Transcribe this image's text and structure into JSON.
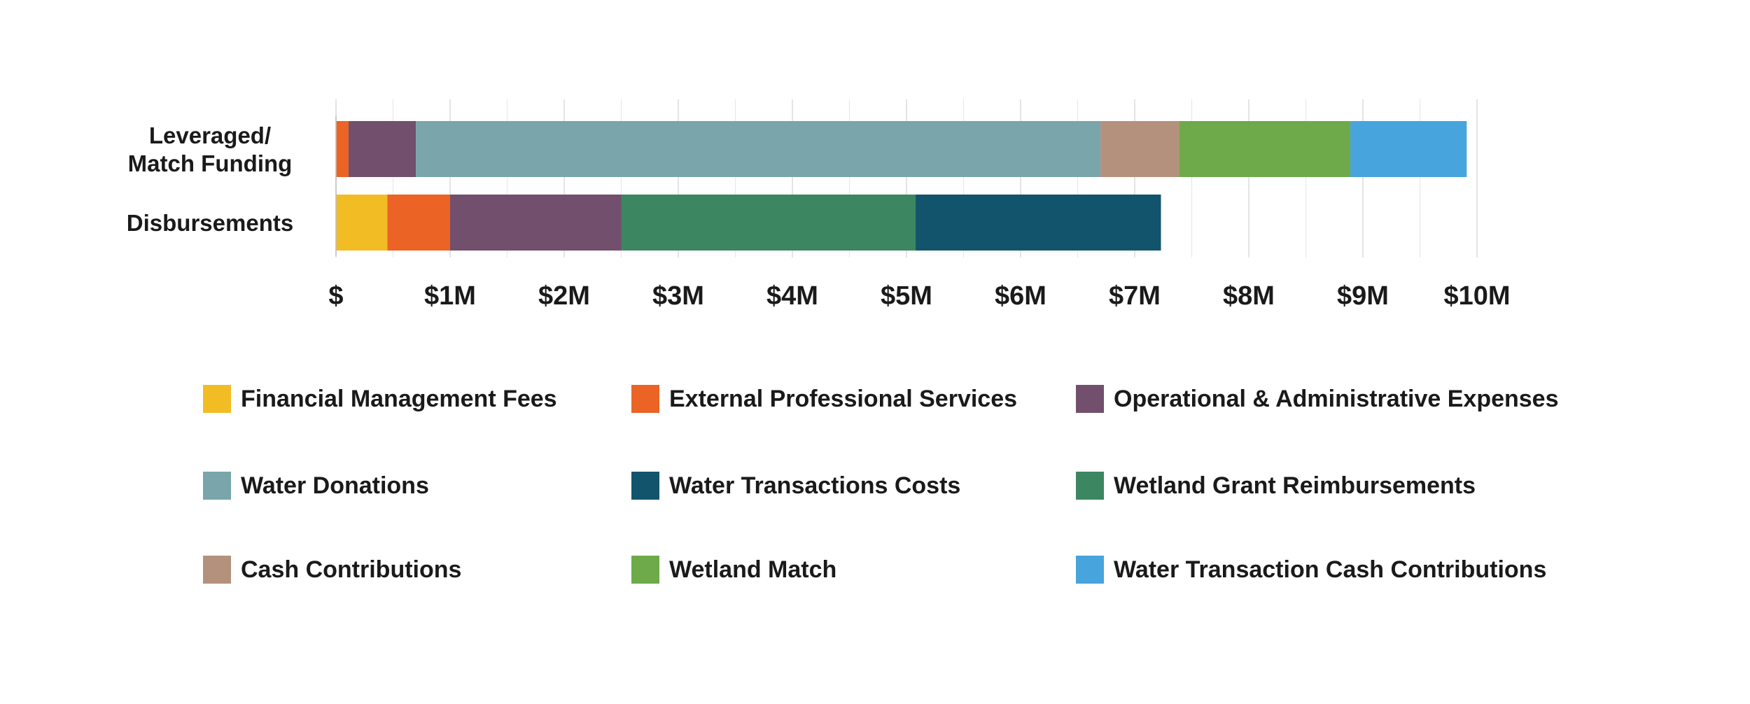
{
  "chart_data": {
    "type": "bar",
    "orientation": "horizontal",
    "stacked": true,
    "title": "",
    "xlabel": "",
    "ylabel": "",
    "xlim": [
      0,
      10000000
    ],
    "x_ticks": [
      0,
      1000000,
      2000000,
      3000000,
      4000000,
      5000000,
      6000000,
      7000000,
      8000000,
      9000000,
      10000000
    ],
    "x_tick_labels": [
      "$",
      "$1M",
      "$2M",
      "$3M",
      "$4M",
      "$5M",
      "$6M",
      "$7M",
      "$8M",
      "$9M",
      "$10M"
    ],
    "grid": "vertical",
    "legend_position": "bottom",
    "categories": [
      "Leveraged/\nMatch Funding",
      "Disbursements"
    ],
    "category_lines": [
      [
        "Leveraged/",
        "Match Funding"
      ],
      [
        "Disbursements"
      ]
    ],
    "series": [
      {
        "name": "Financial Management Fees",
        "color": "#F2BC24",
        "values": [
          0,
          450000
        ]
      },
      {
        "name": "External Professional Services",
        "color": "#EB6325",
        "values": [
          110000,
          550000
        ]
      },
      {
        "name": "Operational & Administrative Expenses",
        "color": "#714F6D",
        "values": [
          590000,
          1500000
        ]
      },
      {
        "name": "Water Donations",
        "color": "#79A5AB",
        "values": [
          6000000,
          0
        ]
      },
      {
        "name": "Water Transactions Costs",
        "color": "#11546B",
        "values": [
          0,
          2150000
        ]
      },
      {
        "name": "Wetland Grant Reimbursements",
        "color": "#3C8661",
        "values": [
          0,
          2580000
        ]
      },
      {
        "name": "Cash Contributions",
        "color": "#B4917D",
        "values": [
          690000,
          0
        ]
      },
      {
        "name": "Wetland Match",
        "color": "#6EA94A",
        "values": [
          1500000,
          0
        ]
      },
      {
        "name": "Water Transaction Cash Contributions",
        "color": "#47A4DC",
        "values": [
          1020000,
          0
        ]
      }
    ],
    "stack_order": [
      [
        "External Professional Services",
        "Operational & Administrative Expenses",
        "Water Donations",
        "Cash Contributions",
        "Wetland Match",
        "Water Transaction Cash Contributions"
      ],
      [
        "Financial Management Fees",
        "External Professional Services",
        "Operational & Administrative Expenses",
        "Wetland Grant Reimbursements",
        "Water Transactions Costs"
      ]
    ]
  },
  "legend": {
    "items": [
      {
        "label": "Financial Management Fees",
        "color": "#F2BC24"
      },
      {
        "label": "External Professional Services",
        "color": "#EB6325"
      },
      {
        "label": "Operational & Administrative Expenses",
        "color": "#714F6D"
      },
      {
        "label": "Water Donations",
        "color": "#79A5AB"
      },
      {
        "label": "Water Transactions Costs",
        "color": "#11546B"
      },
      {
        "label": "Wetland Grant Reimbursements",
        "color": "#3C8661"
      },
      {
        "label": "Cash Contributions",
        "color": "#B4917D"
      },
      {
        "label": "Wetland Match",
        "color": "#6EA94A"
      },
      {
        "label": "Water Transaction Cash Contributions",
        "color": "#47A4DC"
      }
    ]
  }
}
